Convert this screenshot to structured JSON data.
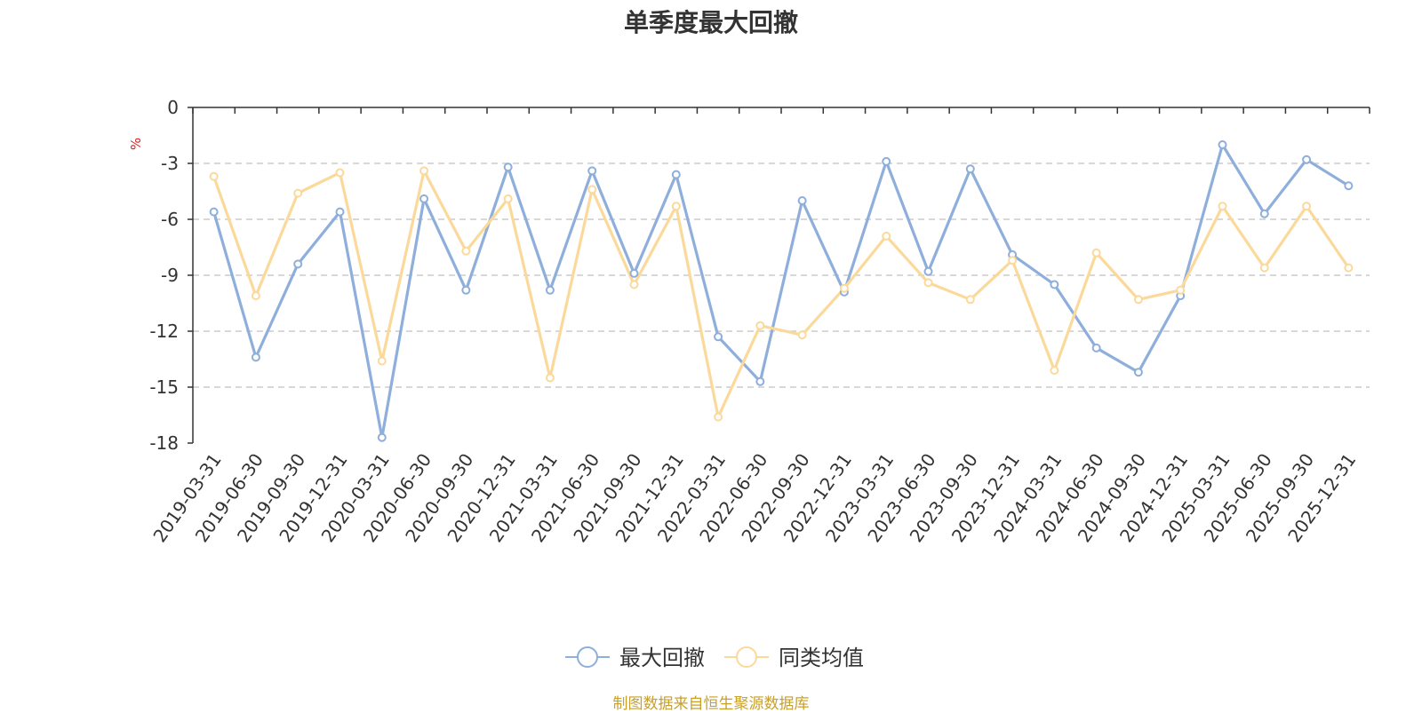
{
  "chart_data": {
    "type": "line",
    "title": "单季度最大回撤",
    "ylabel": "%",
    "ylim": [
      -18,
      0
    ],
    "yticks": [
      0,
      -3,
      -6,
      -9,
      -12,
      -15,
      -18
    ],
    "grid": true,
    "legend_position": "bottom-center",
    "categories": [
      "2019-03-31",
      "2019-06-30",
      "2019-09-30",
      "2019-12-31",
      "2020-03-31",
      "2020-06-30",
      "2020-09-30",
      "2020-12-31",
      "2021-03-31",
      "2021-06-30",
      "2021-09-30",
      "2021-12-31",
      "2022-03-31",
      "2022-06-30",
      "2022-09-30",
      "2022-12-31",
      "2023-03-31",
      "2023-06-30",
      "2023-09-30",
      "2023-12-31",
      "2024-03-31",
      "2024-06-30",
      "2024-09-30",
      "2024-12-31",
      "2025-03-31",
      "2025-06-30",
      "2025-09-30",
      "2025-12-31"
    ],
    "series": [
      {
        "name": "最大回撤",
        "color": "#8eaedb",
        "values": [
          -5.6,
          -13.4,
          -8.4,
          -5.6,
          -17.7,
          -4.9,
          -9.8,
          -3.2,
          -9.8,
          -3.4,
          -8.9,
          -3.6,
          -12.3,
          -14.7,
          -5.0,
          -9.9,
          -2.9,
          -8.8,
          -3.3,
          -7.9,
          -9.5,
          -12.9,
          -14.2,
          -10.1,
          -2.0,
          -5.7,
          -2.8,
          -4.2
        ]
      },
      {
        "name": "同类均值",
        "color": "#fbd99a",
        "values": [
          -3.7,
          -10.1,
          -4.6,
          -3.5,
          -13.6,
          -3.4,
          -7.7,
          -4.9,
          -14.5,
          -4.4,
          -9.5,
          -5.3,
          -16.6,
          -11.7,
          -12.2,
          -9.7,
          -6.9,
          -9.4,
          -10.3,
          -8.2,
          -14.1,
          -7.8,
          -10.3,
          -9.8,
          -5.3,
          -8.6,
          -5.3,
          -8.6
        ]
      }
    ]
  },
  "source_note": "制图数据来自恒生聚源数据库"
}
